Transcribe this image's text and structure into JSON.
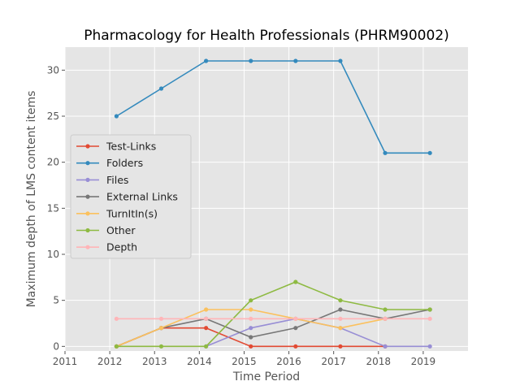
{
  "chart_data": {
    "type": "line",
    "title": "Pharmacology for Health Professionals (PHRM90002)",
    "xlabel": "Time Period",
    "ylabel": "Maximum depth of LMS content items",
    "xlim": [
      2011,
      2020
    ],
    "ylim": [
      -0.5,
      32.5
    ],
    "x_ticks": [
      2011,
      2012,
      2013,
      2014,
      2015,
      2016,
      2017,
      2018,
      2019
    ],
    "y_ticks": [
      0,
      5,
      10,
      15,
      20,
      25,
      30
    ],
    "grid": true,
    "legend_position": "center-left",
    "x": [
      2012.15,
      2013.15,
      2014.15,
      2015.15,
      2016.15,
      2017.15,
      2018.15,
      2019.15
    ],
    "series": [
      {
        "name": "Test-Links",
        "color": "#E24A33",
        "values": [
          0,
          2,
          2,
          0,
          0,
          0,
          0,
          null
        ]
      },
      {
        "name": "Folders",
        "color": "#348ABD",
        "values": [
          25,
          28,
          31,
          31,
          31,
          31,
          21,
          21
        ]
      },
      {
        "name": "Files",
        "color": "#988ED5",
        "values": [
          null,
          null,
          0,
          2,
          3,
          2,
          0,
          0
        ]
      },
      {
        "name": "External Links",
        "color": "#777777",
        "values": [
          0,
          2,
          3,
          1,
          2,
          4,
          3,
          4
        ]
      },
      {
        "name": "TurnItIn(s)",
        "color": "#FBC15E",
        "values": [
          0,
          2,
          4,
          4,
          3,
          2,
          3,
          null
        ]
      },
      {
        "name": "Other",
        "color": "#8EBA42",
        "values": [
          0,
          0,
          0,
          5,
          7,
          5,
          4,
          4
        ]
      },
      {
        "name": "Depth",
        "color": "#FFB5B8",
        "values": [
          3,
          3,
          3,
          3,
          3,
          3,
          3,
          3
        ]
      }
    ]
  }
}
